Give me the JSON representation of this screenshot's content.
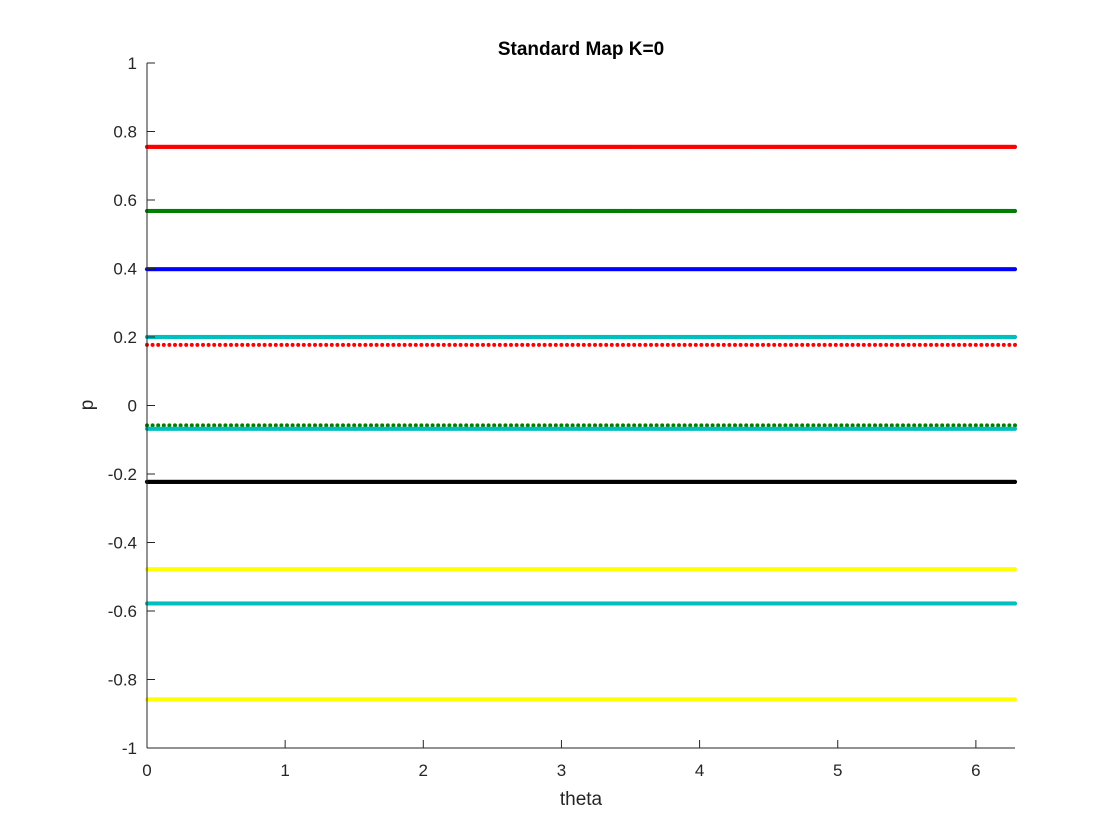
{
  "chart_data": {
    "type": "scatter",
    "title": "Standard Map K=0",
    "xlabel": "theta",
    "ylabel": "p",
    "xlim": [
      0,
      6.2832
    ],
    "ylim": [
      -1,
      1
    ],
    "xticks": [
      0,
      1,
      2,
      3,
      4,
      5,
      6
    ],
    "xtick_labels": [
      "0",
      "1",
      "2",
      "3",
      "4",
      "5",
      "6"
    ],
    "yticks": [
      -1,
      -0.8,
      -0.6,
      -0.4,
      -0.2,
      0,
      0.2,
      0.4,
      0.6,
      0.8,
      1
    ],
    "ytick_labels": [
      "-1",
      "-0.8",
      "-0.6",
      "-0.4",
      "-0.2",
      "0",
      "0.2",
      "0.4",
      "0.6",
      "0.8",
      "1"
    ],
    "grid": false,
    "legend": "none",
    "series": [
      {
        "y": 0.755,
        "x_range": [
          0,
          6.2832
        ],
        "color": "#ff0000",
        "style": "dense"
      },
      {
        "y": 0.568,
        "x_range": [
          0,
          6.2832
        ],
        "color": "#007f00",
        "style": "dense"
      },
      {
        "y": 0.398,
        "x_range": [
          0,
          6.2832
        ],
        "color": "#0000ff",
        "style": "dense"
      },
      {
        "y": 0.2,
        "x_range": [
          0,
          6.2832
        ],
        "color": "#00bfbf",
        "style": "dense"
      },
      {
        "y": 0.177,
        "x_range": [
          0,
          6.2832
        ],
        "color": "#ff0000",
        "style": "dotted"
      },
      {
        "y": -0.058,
        "x_range": [
          0,
          6.2832
        ],
        "color": "#007f00",
        "style": "dotted"
      },
      {
        "y": -0.068,
        "x_range": [
          0,
          6.2832
        ],
        "color": "#00bfbf",
        "style": "dense"
      },
      {
        "y": -0.223,
        "x_range": [
          0,
          6.2832
        ],
        "color": "#000000",
        "style": "dense"
      },
      {
        "y": -0.478,
        "x_range": [
          0,
          6.2832
        ],
        "color": "#ffff00",
        "style": "dense"
      },
      {
        "y": -0.578,
        "x_range": [
          0,
          6.2832
        ],
        "color": "#00bfbf",
        "style": "dense"
      },
      {
        "y": -0.858,
        "x_range": [
          0,
          6.2832
        ],
        "color": "#ffff00",
        "style": "dense"
      }
    ]
  }
}
